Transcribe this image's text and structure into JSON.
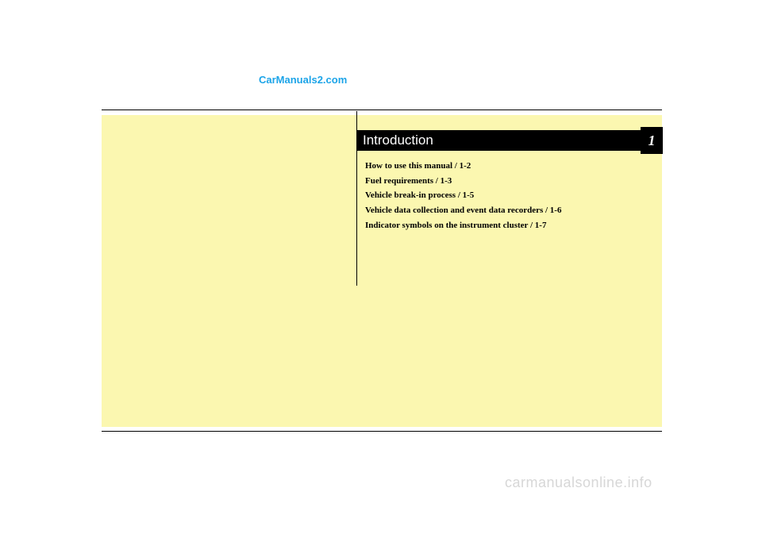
{
  "watermarks": {
    "top": "CarManuals2.com",
    "bottom": "carmanualsonline.info"
  },
  "chapter": {
    "title": "Introduction",
    "number": "1"
  },
  "toc": {
    "items": [
      "How to use this manual / 1-2",
      "Fuel requirements / 1-3",
      "Vehicle break-in process / 1-5",
      "Vehicle data collection and event data recorders / 1-6",
      "Indicator symbols on the instrument cluster / 1-7"
    ]
  },
  "colors": {
    "page_bg": "#fbf7b0",
    "header_bg": "#000000",
    "header_text": "#ffffff",
    "link_blue": "#1ca4e8",
    "watermark_gray": "#d7d7d7"
  }
}
